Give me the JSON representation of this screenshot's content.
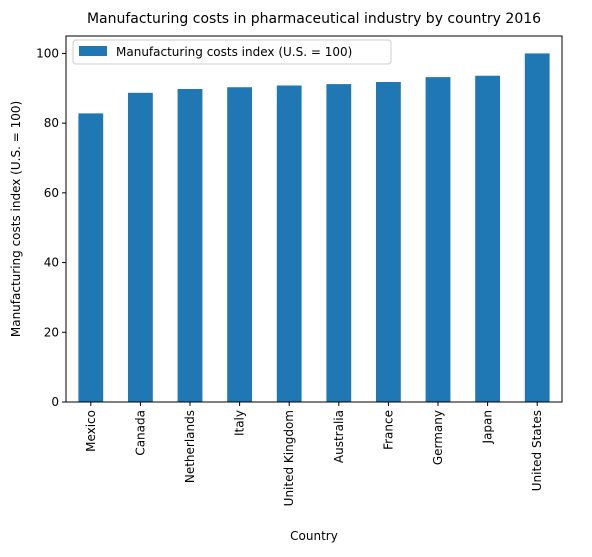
{
  "chart_data": {
    "type": "bar",
    "title": "Manufacturing costs in pharmaceutical industry by country 2016",
    "xlabel": "Country",
    "ylabel": "Manufacturing costs index (U.S. = 100)",
    "categories": [
      "Mexico",
      "Canada",
      "Netherlands",
      "Italy",
      "United Kingdom",
      "Australia",
      "France",
      "Germany",
      "Japan",
      "United States"
    ],
    "series": [
      {
        "name": "Manufacturing costs index (U.S. = 100)",
        "values": [
          82.8,
          88.7,
          89.8,
          90.3,
          90.8,
          91.2,
          91.8,
          93.2,
          93.6,
          100
        ],
        "color": "#1f77b4"
      }
    ],
    "ylim": [
      0,
      105
    ],
    "yticks": [
      0,
      20,
      40,
      60,
      80,
      100
    ],
    "grid": false,
    "legend_position": "upper-left"
  }
}
